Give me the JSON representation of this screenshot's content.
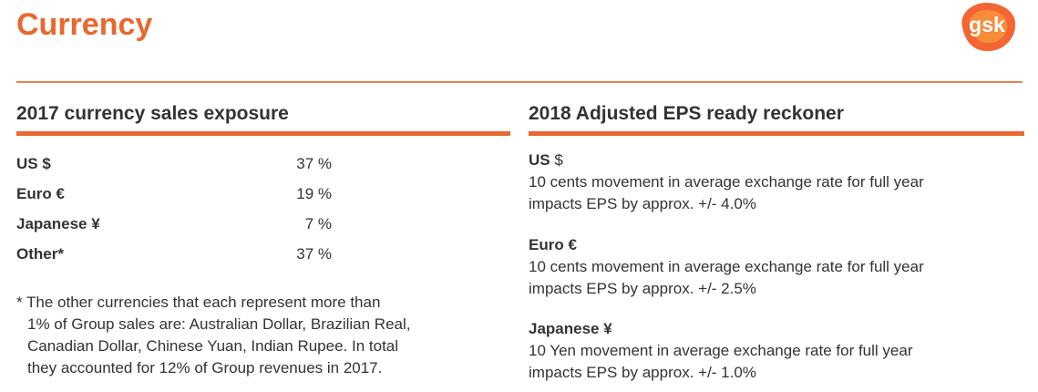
{
  "page": {
    "title": "Currency"
  },
  "logo": {
    "text": "gsk",
    "colors": {
      "outer": "#f36633",
      "inner": "#f89a3c",
      "text": "#ffffff"
    }
  },
  "colors": {
    "accent": "#e86830",
    "text": "#333333"
  },
  "exposure": {
    "title": "2017 currency sales exposure",
    "rows": [
      {
        "currency": "US $",
        "percent": "37 %"
      },
      {
        "currency": "Euro €",
        "percent": "19 %"
      },
      {
        "currency": "Japanese ¥",
        "percent": "7 %"
      },
      {
        "currency": "Other*",
        "percent": "37 %"
      }
    ],
    "footnote_lines": [
      "* The other currencies that each represent more than",
      "1% of Group sales are: Australian Dollar, Brazilian Real,",
      "Canadian Dollar, Chinese Yuan, Indian Rupee.  In total",
      "they accounted for 12% of  Group revenues in 2017."
    ]
  },
  "reckoner": {
    "title": "2018 Adjusted EPS ready reckoner",
    "items": [
      {
        "title": "US",
        "symbol": "$",
        "lines": [
          "10 cents movement in average exchange rate for full year",
          "impacts EPS by approx. +/- 4.0%"
        ]
      },
      {
        "title": "Euro €",
        "symbol": "",
        "lines": [
          "10 cents movement in average exchange rate for full year",
          "impacts EPS by approx. +/- 2.5%"
        ]
      },
      {
        "title": "Japanese ¥",
        "symbol": "",
        "lines": [
          "10 Yen movement in average exchange rate for full year",
          "impacts EPS by approx. +/- 1.0%"
        ]
      }
    ]
  }
}
